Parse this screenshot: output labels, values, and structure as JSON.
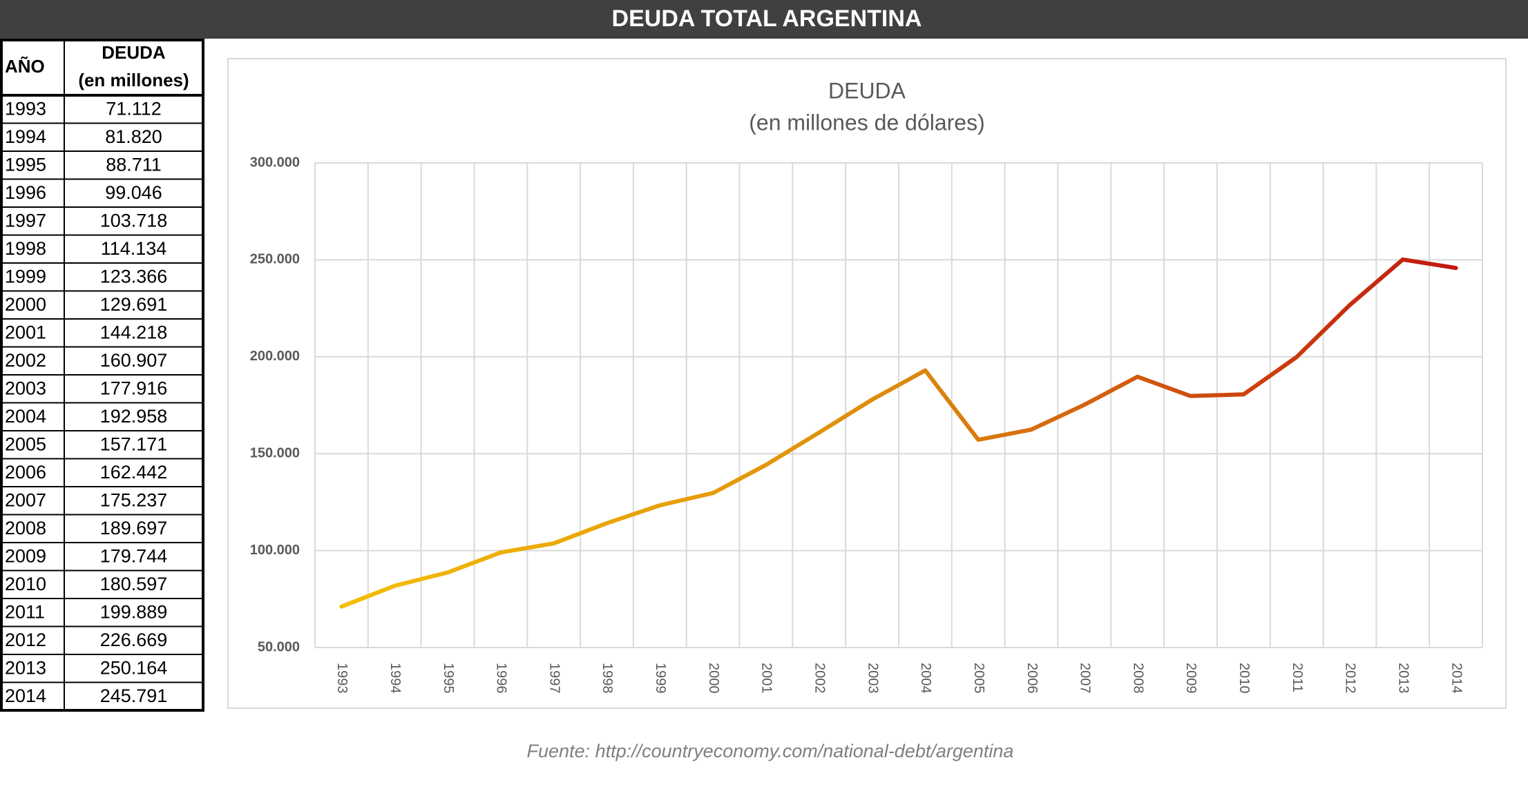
{
  "header": {
    "title": "DEUDA TOTAL ARGENTINA"
  },
  "table": {
    "columns": [
      [
        "AÑO"
      ],
      [
        "DEUDA",
        "(en millones)"
      ]
    ],
    "rows": [
      [
        "1993",
        "71.112"
      ],
      [
        "1994",
        "81.820"
      ],
      [
        "1995",
        "88.711"
      ],
      [
        "1996",
        "99.046"
      ],
      [
        "1997",
        "103.718"
      ],
      [
        "1998",
        "114.134"
      ],
      [
        "1999",
        "123.366"
      ],
      [
        "2000",
        "129.691"
      ],
      [
        "2001",
        "144.218"
      ],
      [
        "2002",
        "160.907"
      ],
      [
        "2003",
        "177.916"
      ],
      [
        "2004",
        "192.958"
      ],
      [
        "2005",
        "157.171"
      ],
      [
        "2006",
        "162.442"
      ],
      [
        "2007",
        "175.237"
      ],
      [
        "2008",
        "189.697"
      ],
      [
        "2009",
        "179.744"
      ],
      [
        "2010",
        "180.597"
      ],
      [
        "2011",
        "199.889"
      ],
      [
        "2012",
        "226.669"
      ],
      [
        "2013",
        "250.164"
      ],
      [
        "2014",
        "245.791"
      ]
    ]
  },
  "chart_data": {
    "type": "line",
    "title": "DEUDA",
    "subtitle": "(en millones de dólares)",
    "categories": [
      "1993",
      "1994",
      "1995",
      "1996",
      "1997",
      "1998",
      "1999",
      "2000",
      "2001",
      "2002",
      "2003",
      "2004",
      "2005",
      "2006",
      "2007",
      "2008",
      "2009",
      "2010",
      "2011",
      "2012",
      "2013",
      "2014"
    ],
    "values": [
      71112,
      81820,
      88711,
      99046,
      103718,
      114134,
      123366,
      129691,
      144218,
      160907,
      177916,
      192958,
      157171,
      162442,
      175237,
      189697,
      179744,
      180597,
      199889,
      226669,
      250164,
      245791
    ],
    "color": [
      "#f5c000",
      "#dd8a0c",
      "#c0120f"
    ],
    "ylim": [
      50000,
      300000
    ],
    "yticks": [
      {
        "value": 50000,
        "label": "50.000"
      },
      {
        "value": 100000,
        "label": "100.000"
      },
      {
        "value": 150000,
        "label": "150.000"
      },
      {
        "value": 200000,
        "label": "200.000"
      },
      {
        "value": 250000,
        "label": "250.000"
      },
      {
        "value": 300000,
        "label": "300.000"
      }
    ],
    "grid": true
  },
  "source": "Fuente: http://countryeconomy.com/national-debt/argentina"
}
